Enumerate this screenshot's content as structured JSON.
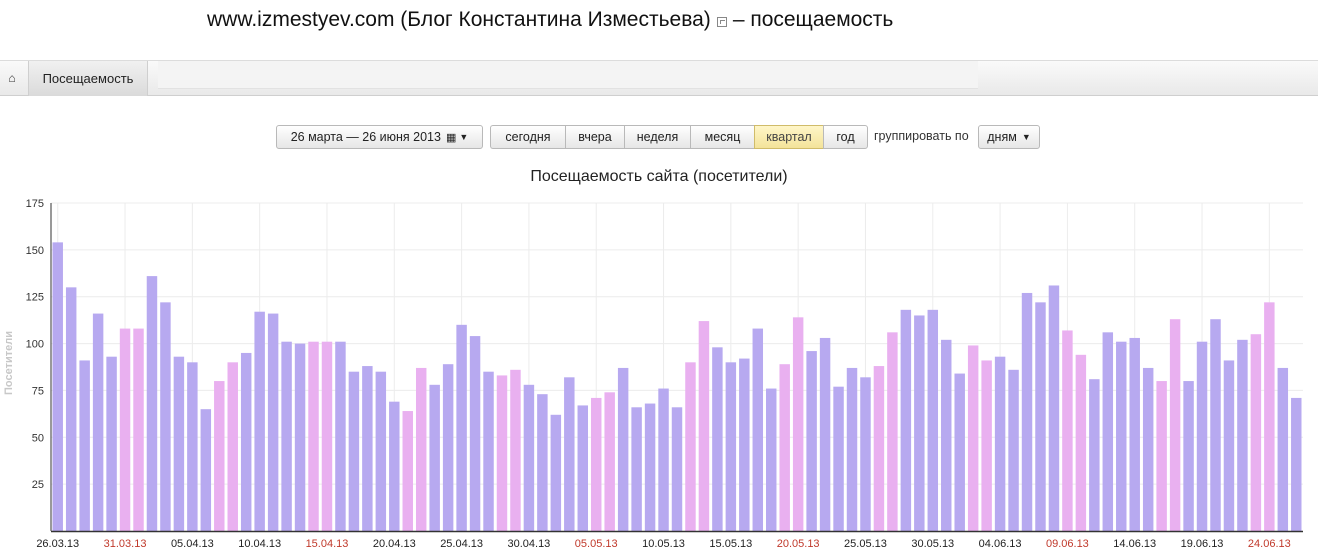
{
  "header": {
    "site": "www.izmestyev.com (Блог Константина Изместьева)",
    "suffix": "– посещаемость"
  },
  "tabs": {
    "home_icon": "home-icon",
    "active_label": "Посещаемость"
  },
  "controls": {
    "date_range": "26 марта — 26 июня 2013",
    "periods": [
      "сегодня",
      "вчера",
      "неделя",
      "месяц",
      "квартал",
      "год"
    ],
    "active_period": "квартал",
    "group_label": "группировать по",
    "group_value": "дням"
  },
  "chart_data": {
    "type": "bar",
    "title": "Посещаемость сайта (посетители)",
    "ylabel": "Посетители",
    "ylim": [
      0,
      175
    ],
    "yticks": [
      25,
      50,
      75,
      100,
      125,
      150,
      175
    ],
    "grid": true,
    "colors": {
      "weekday": "#b7a9f0",
      "weekend": "#e9b0f0",
      "weekend_label": "#c0392b",
      "weekday_label": "#222222"
    },
    "first_date": "26.03.13",
    "values": [
      154,
      130,
      91,
      116,
      93,
      108,
      108,
      136,
      122,
      93,
      90,
      65,
      80,
      90,
      95,
      117,
      116,
      101,
      100,
      101,
      101,
      101,
      85,
      88,
      85,
      69,
      64,
      87,
      78,
      89,
      110,
      104,
      85,
      83,
      86,
      78,
      73,
      62,
      82,
      67,
      71,
      74,
      87,
      66,
      68,
      76,
      66,
      90,
      112,
      98,
      90,
      92,
      108,
      76,
      89,
      114,
      96,
      103,
      77,
      87,
      82,
      88,
      106,
      118,
      115,
      118,
      102,
      84,
      99,
      91,
      93,
      86,
      127,
      122,
      131,
      107,
      94,
      81,
      106,
      101,
      103,
      87,
      80,
      113,
      80,
      101,
      113,
      91,
      102,
      105,
      122,
      87,
      71
    ],
    "weekend": [
      false,
      false,
      false,
      false,
      false,
      true,
      true,
      false,
      false,
      false,
      false,
      false,
      true,
      true,
      false,
      false,
      false,
      false,
      false,
      true,
      true,
      false,
      false,
      false,
      false,
      false,
      true,
      true,
      false,
      false,
      false,
      false,
      false,
      true,
      true,
      false,
      false,
      false,
      false,
      false,
      true,
      true,
      false,
      false,
      false,
      false,
      false,
      true,
      true,
      false,
      false,
      false,
      false,
      false,
      true,
      true,
      false,
      false,
      false,
      false,
      false,
      true,
      true,
      false,
      false,
      false,
      false,
      false,
      true,
      true,
      false,
      false,
      false,
      false,
      false,
      true,
      true,
      false,
      false,
      false,
      false,
      false,
      true,
      true,
      false,
      false,
      false,
      false,
      false,
      true,
      true,
      false,
      false
    ],
    "xtick_labels": [
      {
        "i": 0,
        "label": "26.03.13"
      },
      {
        "i": 5,
        "label": "31.03.13"
      },
      {
        "i": 10,
        "label": "05.04.13"
      },
      {
        "i": 15,
        "label": "10.04.13"
      },
      {
        "i": 20,
        "label": "15.04.13"
      },
      {
        "i": 25,
        "label": "20.04.13"
      },
      {
        "i": 30,
        "label": "25.04.13"
      },
      {
        "i": 35,
        "label": "30.04.13"
      },
      {
        "i": 40,
        "label": "05.05.13"
      },
      {
        "i": 45,
        "label": "10.05.13"
      },
      {
        "i": 50,
        "label": "15.05.13"
      },
      {
        "i": 55,
        "label": "20.05.13"
      },
      {
        "i": 60,
        "label": "25.05.13"
      },
      {
        "i": 65,
        "label": "30.05.13"
      },
      {
        "i": 70,
        "label": "04.06.13"
      },
      {
        "i": 75,
        "label": "09.06.13"
      },
      {
        "i": 80,
        "label": "14.06.13"
      },
      {
        "i": 85,
        "label": "19.06.13"
      },
      {
        "i": 90,
        "label": "24.06.13"
      }
    ]
  }
}
